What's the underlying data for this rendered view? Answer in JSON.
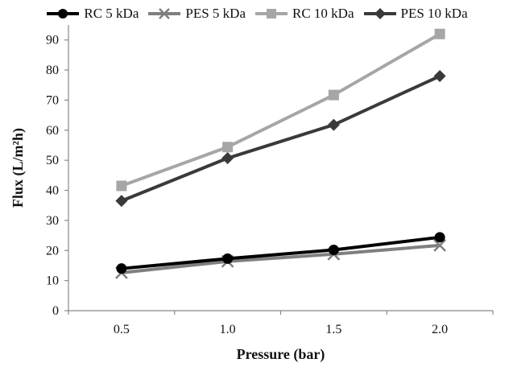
{
  "chart_data": {
    "type": "line",
    "xlabel": "Pressure (bar)",
    "ylabel": "Flux (L/m²h)",
    "x": [
      0.5,
      1.0,
      1.5,
      2.0
    ],
    "x_tick_labels": [
      "0.5",
      "1.0",
      "1.5",
      "2.0"
    ],
    "xlim": [
      0.25,
      2.25
    ],
    "ylim": [
      0,
      95
    ],
    "y_ticks": [
      0,
      10,
      20,
      30,
      40,
      50,
      60,
      70,
      80,
      90
    ],
    "grid": false,
    "legend_position": "top",
    "series": [
      {
        "name": "RC 5 kDa",
        "values": [
          14,
          17.3,
          20.2,
          24.4
        ],
        "color": "#000000",
        "marker": "circle"
      },
      {
        "name": "PES 5 kDa",
        "values": [
          12.6,
          16.4,
          18.8,
          21.7
        ],
        "color": "#7f7f7f",
        "marker": "x"
      },
      {
        "name": "RC 10 kDa",
        "values": [
          41.5,
          54.4,
          71.7,
          92
        ],
        "color": "#a6a6a6",
        "marker": "square"
      },
      {
        "name": "PES 10 kDa",
        "values": [
          36.5,
          50.7,
          61.8,
          78
        ],
        "color": "#3a3a3a",
        "marker": "diamond"
      }
    ]
  }
}
